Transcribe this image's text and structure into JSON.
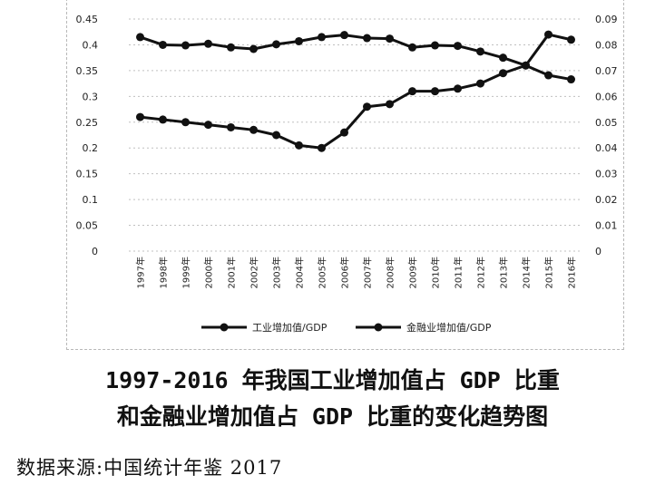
{
  "chart_data": {
    "type": "line",
    "categories": [
      "1997年",
      "1998年",
      "1999年",
      "2000年",
      "2001年",
      "2002年",
      "2003年",
      "2004年",
      "2005年",
      "2006年",
      "2007年",
      "2008年",
      "2009年",
      "2010年",
      "2011年",
      "2012年",
      "2013年",
      "2014年",
      "2015年",
      "2016年"
    ],
    "series": [
      {
        "name": "工业增加值/GDP",
        "axis": "left",
        "values": [
          0.415,
          0.4,
          0.399,
          0.402,
          0.395,
          0.392,
          0.401,
          0.407,
          0.415,
          0.419,
          0.413,
          0.412,
          0.395,
          0.399,
          0.398,
          0.387,
          0.375,
          0.36,
          0.341,
          0.333
        ]
      },
      {
        "name": "金融业增加值/GDP",
        "axis": "right",
        "values": [
          0.052,
          0.051,
          0.05,
          0.049,
          0.048,
          0.047,
          0.045,
          0.041,
          0.04,
          0.046,
          0.056,
          0.057,
          0.062,
          0.062,
          0.063,
          0.065,
          0.069,
          0.072,
          0.084,
          0.082
        ]
      }
    ],
    "left_axis": {
      "min": 0,
      "max": 0.45,
      "ticks": [
        "0",
        "0.05",
        "0.1",
        "0.15",
        "0.2",
        "0.25",
        "0.3",
        "0.35",
        "0.4",
        "0.45"
      ]
    },
    "right_axis": {
      "min": 0,
      "max": 0.09,
      "ticks": [
        "0",
        "0.01",
        "0.02",
        "0.03",
        "0.04",
        "0.05",
        "0.06",
        "0.07",
        "0.08",
        "0.09"
      ]
    },
    "grid": true,
    "legend_position": "bottom",
    "colors": {
      "series": "#111111",
      "grid": "#c0c0c0",
      "frame": "#b8b8b8"
    }
  },
  "caption": {
    "line1": "1997-2016 年我国工业增加值占 GDP 比重",
    "line2": "和金融业增加值占 GDP 比重的变化趋势图"
  },
  "source": "数据来源:中国统计年鉴 2017"
}
